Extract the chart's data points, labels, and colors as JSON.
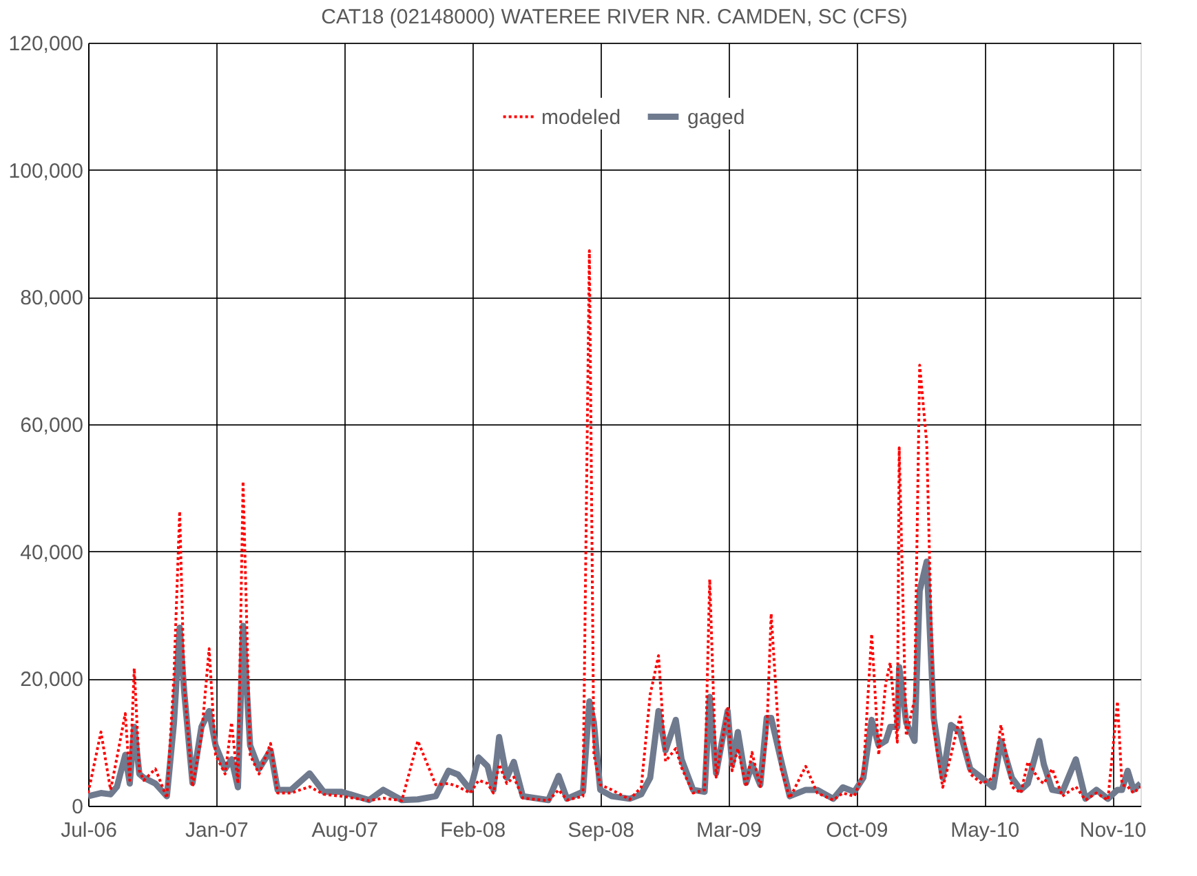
{
  "chart_data": {
    "type": "line",
    "title": "CAT18 (02148000) WATEREE RIVER NR. CAMDEN, SC (CFS)",
    "x": [
      "2006-07-01",
      "2006-07-21",
      "2006-08-05",
      "2006-08-15",
      "2006-08-28",
      "2006-09-04",
      "2006-09-11",
      "2006-09-19",
      "2006-09-26",
      "2006-10-14",
      "2006-11-01",
      "2006-11-12",
      "2006-11-21",
      "2006-11-28",
      "2006-12-11",
      "2006-12-25",
      "2007-01-06",
      "2007-01-16",
      "2007-01-31",
      "2007-02-10",
      "2007-02-20",
      "2007-02-28",
      "2007-03-11",
      "2007-03-25",
      "2007-04-12",
      "2007-04-23",
      "2007-05-14",
      "2007-06-12",
      "2007-07-04",
      "2007-08-01",
      "2007-09-13",
      "2007-10-05",
      "2007-11-03",
      "2007-11-28",
      "2007-12-26",
      "2008-01-15",
      "2008-01-30",
      "2008-02-18",
      "2008-03-02",
      "2008-03-16",
      "2008-03-25",
      "2008-04-03",
      "2008-04-15",
      "2008-04-26",
      "2008-05-10",
      "2008-06-19",
      "2008-07-05",
      "2008-07-18",
      "2008-08-12",
      "2008-08-22",
      "2008-08-29",
      "2008-09-08",
      "2008-09-26",
      "2008-10-24",
      "2008-11-11",
      "2008-11-25",
      "2008-12-08",
      "2008-12-19",
      "2009-01-04",
      "2009-01-13",
      "2009-01-31",
      "2009-02-18",
      "2009-02-26",
      "2009-03-08",
      "2009-03-26",
      "2009-04-02",
      "2009-04-11",
      "2009-04-24",
      "2009-05-03",
      "2009-05-16",
      "2009-05-26",
      "2009-06-02",
      "2009-06-17",
      "2009-07-01",
      "2009-07-26",
      "2009-08-13",
      "2009-09-07",
      "2009-09-22",
      "2009-10-10",
      "2009-10-24",
      "2009-11-06",
      "2009-11-17",
      "2009-11-28",
      "2009-12-05",
      "2009-12-16",
      "2009-12-19",
      "2009-12-30",
      "2010-01-12",
      "2010-01-20",
      "2010-01-31",
      "2010-02-11",
      "2010-02-25",
      "2010-03-10",
      "2010-03-24",
      "2010-04-09",
      "2010-04-27",
      "2010-05-15",
      "2010-05-27",
      "2010-06-13",
      "2010-06-27",
      "2010-07-08",
      "2010-07-26",
      "2010-08-02",
      "2010-08-15",
      "2010-08-31",
      "2010-09-21",
      "2010-10-06",
      "2010-10-23",
      "2010-11-10",
      "2010-11-25",
      "2010-12-02",
      "2010-12-11",
      "2010-12-20",
      "2010-12-31"
    ],
    "series": [
      {
        "name": "modeled",
        "color": "#ff0000",
        "line_style": "dotted",
        "values": [
          2000,
          11600,
          2500,
          7600,
          14500,
          4000,
          21600,
          5500,
          4000,
          5800,
          1200,
          20400,
          46300,
          18900,
          3000,
          11000,
          24700,
          8000,
          5000,
          13100,
          3500,
          51000,
          8000,
          5000,
          9800,
          2000,
          2000,
          3000,
          1800,
          1500,
          800,
          1200,
          800,
          10200,
          3300,
          3500,
          3000,
          2000,
          4000,
          3500,
          2000,
          6500,
          3500,
          4500,
          1200,
          800,
          2500,
          900,
          1500,
          87300,
          8000,
          3300,
          2500,
          1000,
          2900,
          17500,
          23600,
          7000,
          9000,
          6000,
          2000,
          2500,
          35600,
          4500,
          15300,
          5500,
          9000,
          3000,
          8400,
          3000,
          11000,
          30200,
          6000,
          1200,
          6200,
          2000,
          900,
          2000,
          1500,
          5100,
          27000,
          8000,
          19300,
          22500,
          10000,
          56300,
          11000,
          16700,
          69300,
          57000,
          12000,
          2900,
          8000,
          14000,
          5000,
          3500,
          4400,
          12700,
          3000,
          2000,
          6900,
          4000,
          3500,
          5800,
          1500,
          3000,
          900,
          2000,
          900,
          16400,
          3300,
          3000,
          2000,
          3000
        ]
      },
      {
        "name": "gaged",
        "color": "#6f7a8e",
        "line_style": "solid",
        "values": [
          1500,
          2000,
          1800,
          3000,
          8000,
          3500,
          12400,
          5000,
          4400,
          3500,
          1500,
          13000,
          28000,
          18000,
          3600,
          12400,
          14900,
          9500,
          5800,
          7300,
          2900,
          28300,
          9500,
          5800,
          8700,
          2500,
          2500,
          5100,
          2200,
          2200,
          900,
          2500,
          900,
          1000,
          1500,
          5500,
          4900,
          2500,
          7600,
          6200,
          2500,
          10800,
          4400,
          6900,
          1500,
          900,
          4700,
          1100,
          2200,
          16400,
          13100,
          2500,
          1500,
          1100,
          1800,
          4400,
          14900,
          8700,
          13500,
          7300,
          2500,
          2200,
          17100,
          5100,
          14900,
          6500,
          11600,
          3600,
          6500,
          3300,
          13800,
          13800,
          7300,
          1500,
          2500,
          2500,
          1100,
          2900,
          2200,
          4400,
          13500,
          9500,
          10200,
          12400,
          12400,
          21800,
          13100,
          10200,
          33800,
          38400,
          13800,
          4400,
          12700,
          11600,
          5800,
          4400,
          2900,
          10200,
          4400,
          2500,
          3500,
          10200,
          6500,
          2500,
          2200,
          7300,
          1100,
          2500,
          1100,
          2500,
          2500,
          5500,
          2500,
          3500
        ]
      }
    ],
    "xlim": [
      "2006-07-01",
      "2010-12-31"
    ],
    "xticks": [
      {
        "value": "2006-07-01",
        "label": "Jul-06"
      },
      {
        "value": "2007-01-17",
        "label": "Jan-07"
      },
      {
        "value": "2007-08-05",
        "label": "Aug-07"
      },
      {
        "value": "2008-02-21",
        "label": "Feb-08"
      },
      {
        "value": "2008-09-08",
        "label": "Sep-08"
      },
      {
        "value": "2009-03-27",
        "label": "Mar-09"
      },
      {
        "value": "2009-10-13",
        "label": "Oct-09"
      },
      {
        "value": "2010-05-01",
        "label": "May-10"
      },
      {
        "value": "2010-11-17",
        "label": "Nov-10"
      }
    ],
    "ylim": [
      0,
      120000
    ],
    "yticks": [
      {
        "value": 0,
        "label": "0"
      },
      {
        "value": 20000,
        "label": "20,000"
      },
      {
        "value": 40000,
        "label": "40,000"
      },
      {
        "value": 60000,
        "label": "60,000"
      },
      {
        "value": 80000,
        "label": "80,000"
      },
      {
        "value": 100000,
        "label": "100,000"
      },
      {
        "value": 120000,
        "label": "120,000"
      }
    ],
    "grid": true,
    "legend": "top",
    "marker": "none"
  }
}
